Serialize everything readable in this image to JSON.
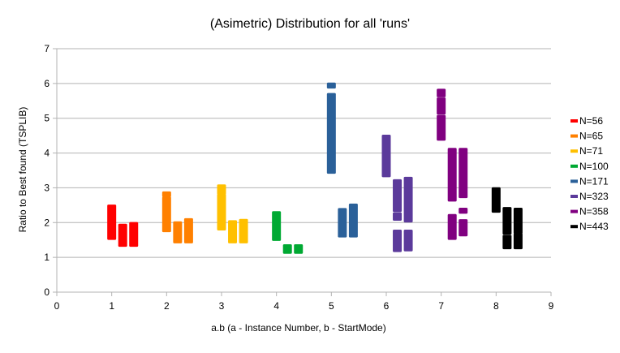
{
  "chart_data": {
    "type": "scatter",
    "title": "(Asimetric) Distribution for all 'runs'",
    "xlabel": "a.b (a - Instance Number, b - StartMode)",
    "ylabel": "Ratio to Best found (TSPLIB)",
    "xlim": [
      0,
      9
    ],
    "ylim": [
      0,
      7
    ],
    "x_ticks": [
      "0",
      "1",
      "2",
      "3",
      "4",
      "5",
      "6",
      "7",
      "8",
      "9"
    ],
    "y_ticks": [
      "0",
      "1",
      "2",
      "3",
      "4",
      "5",
      "6",
      "7"
    ],
    "grid": "horizontal",
    "legend_position": "right",
    "series": [
      {
        "name": "N=56",
        "color": "#ff0000",
        "columns": [
          {
            "x": 1.0,
            "segments": [
              [
                1.55,
                2.47
              ]
            ]
          },
          {
            "x": 1.2,
            "segments": [
              [
                1.35,
                1.92
              ]
            ]
          },
          {
            "x": 1.4,
            "segments": [
              [
                1.35,
                1.97
              ]
            ]
          }
        ]
      },
      {
        "name": "N=65",
        "color": "#ff8000",
        "columns": [
          {
            "x": 2.0,
            "segments": [
              [
                1.77,
                2.7
              ],
              [
                2.78,
                2.85
              ]
            ]
          },
          {
            "x": 2.2,
            "segments": [
              [
                1.45,
                1.99
              ]
            ]
          },
          {
            "x": 2.4,
            "segments": [
              [
                1.45,
                2.08
              ]
            ]
          }
        ]
      },
      {
        "name": "N=71",
        "color": "#ffc000",
        "columns": [
          {
            "x": 3.0,
            "segments": [
              [
                1.82,
                2.78
              ],
              [
                2.85,
                2.92
              ],
              [
                2.97,
                3.05
              ]
            ]
          },
          {
            "x": 3.2,
            "segments": [
              [
                1.45,
                2.02
              ]
            ]
          },
          {
            "x": 3.4,
            "segments": [
              [
                1.45,
                2.06
              ]
            ]
          }
        ]
      },
      {
        "name": "N=100",
        "color": "#00a933",
        "columns": [
          {
            "x": 4.0,
            "segments": [
              [
                1.52,
                2.28
              ]
            ]
          },
          {
            "x": 4.2,
            "segments": [
              [
                1.15,
                1.33
              ]
            ]
          },
          {
            "x": 4.4,
            "segments": [
              [
                1.15,
                1.33
              ]
            ]
          }
        ]
      },
      {
        "name": "N=171",
        "color": "#2a6099",
        "columns": [
          {
            "x": 5.0,
            "segments": [
              [
                3.45,
                5.68
              ],
              [
                5.9,
                5.98
              ]
            ]
          },
          {
            "x": 5.2,
            "segments": [
              [
                1.62,
                2.37
              ]
            ]
          },
          {
            "x": 5.4,
            "segments": [
              [
                1.62,
                2.5
              ]
            ]
          }
        ]
      },
      {
        "name": "N=323",
        "color": "#5b3a9b",
        "columns": [
          {
            "x": 6.0,
            "segments": [
              [
                3.35,
                4.05
              ],
              [
                4.1,
                4.48
              ]
            ]
          },
          {
            "x": 6.2,
            "segments": [
              [
                2.1,
                2.25
              ],
              [
                2.35,
                3.2
              ],
              [
                1.2,
                1.75
              ]
            ]
          },
          {
            "x": 6.4,
            "segments": [
              [
                2.05,
                3.27
              ],
              [
                1.22,
                1.75
              ]
            ]
          }
        ]
      },
      {
        "name": "N=358",
        "color": "#800080",
        "columns": [
          {
            "x": 7.0,
            "segments": [
              [
                4.4,
                5.05
              ],
              [
                5.15,
                5.55
              ],
              [
                5.65,
                5.8
              ]
            ]
          },
          {
            "x": 7.2,
            "segments": [
              [
                2.65,
                4.1
              ],
              [
                1.55,
                2.2
              ]
            ]
          },
          {
            "x": 7.4,
            "segments": [
              [
                2.75,
                4.1
              ],
              [
                1.65,
                2.05
              ],
              [
                2.3,
                2.38
              ]
            ]
          }
        ]
      },
      {
        "name": "N=443",
        "color": "#000000",
        "columns": [
          {
            "x": 8.0,
            "segments": [
              [
                2.33,
                2.97
              ]
            ]
          },
          {
            "x": 8.2,
            "segments": [
              [
                1.28,
                1.6
              ],
              [
                1.7,
                2.4
              ]
            ]
          },
          {
            "x": 8.4,
            "segments": [
              [
                1.28,
                1.65
              ],
              [
                1.72,
                2.38
              ]
            ]
          }
        ]
      }
    ]
  }
}
